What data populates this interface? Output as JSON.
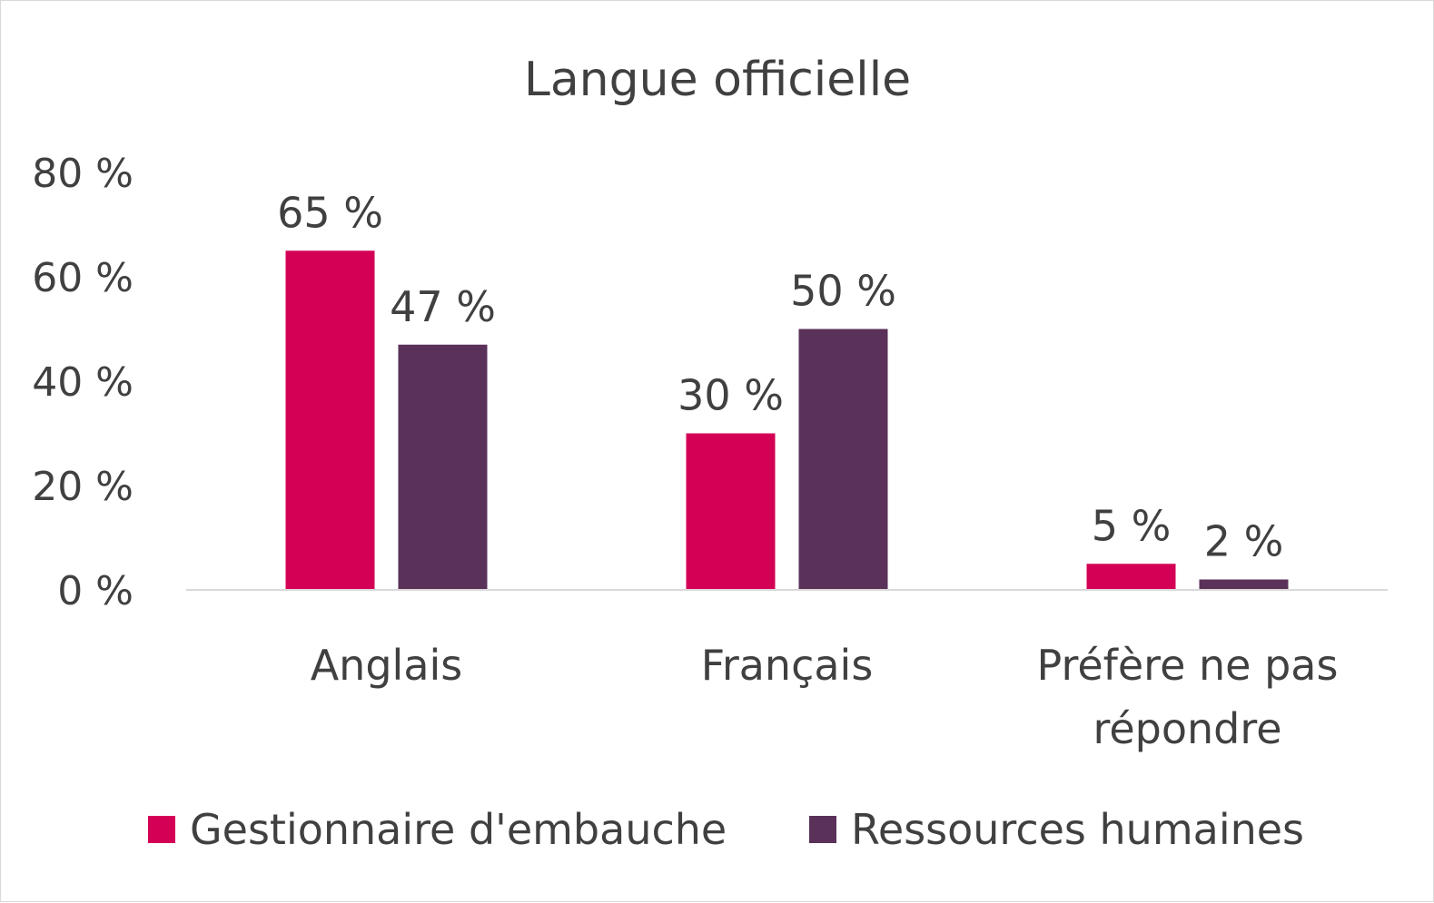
{
  "chart_data": {
    "type": "bar",
    "title": "Langue officielle",
    "categories": [
      "Anglais",
      "Français",
      "Préfère ne pas répondre"
    ],
    "category_lines": [
      [
        "Anglais"
      ],
      [
        "Français"
      ],
      [
        "Préfère ne pas",
        "répondre"
      ]
    ],
    "series": [
      {
        "name": "Gestionnaire d'embauche",
        "color": "#d30056",
        "values": [
          65,
          30,
          5
        ],
        "labels": [
          "65 %",
          "30 %",
          "5 %"
        ]
      },
      {
        "name": "Ressources humaines",
        "color": "#5a3159",
        "values": [
          47,
          50,
          2
        ],
        "labels": [
          "47 %",
          "50 %",
          "2 %"
        ]
      }
    ],
    "ylim": [
      0,
      80
    ],
    "yticks": [
      0,
      20,
      40,
      60,
      80
    ],
    "ytick_labels": [
      "0 %",
      "20 %",
      "40 %",
      "60 %",
      "80 %"
    ],
    "xlabel": "",
    "ylabel": "",
    "grid": false,
    "legend_position": "bottom"
  }
}
